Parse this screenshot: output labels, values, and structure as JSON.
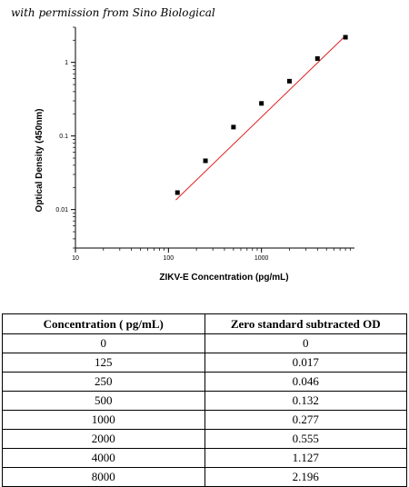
{
  "caption": "with permission from Sino Biological",
  "chart_data": {
    "type": "scatter",
    "x": [
      125,
      250,
      500,
      1000,
      2000,
      4000,
      8000
    ],
    "y": [
      0.017,
      0.046,
      0.132,
      0.277,
      0.555,
      1.127,
      2.196
    ],
    "xlabel": "ZIKV-E Concentration (pg/mL)",
    "ylabel": "Optical Density (450nm)",
    "xscale": "log",
    "yscale": "log",
    "xlim": [
      10,
      10000
    ],
    "ylim": [
      0.003,
      3
    ],
    "xticks": [
      "10",
      "100",
      "1000"
    ],
    "yticks": [
      "0.01",
      "0.1",
      "1"
    ],
    "fit_line": {
      "x": [
        120,
        8000
      ],
      "y": [
        0.0135,
        2.3
      ]
    },
    "colors": {
      "points": "#000000",
      "fit_line": "#e02020",
      "axes": "#000000"
    },
    "grid": false
  },
  "table": {
    "headers": [
      "Concentration ( pg/mL)",
      "Zero standard subtracted OD"
    ],
    "rows": [
      [
        "0",
        "0"
      ],
      [
        "125",
        "0.017"
      ],
      [
        "250",
        "0.046"
      ],
      [
        "500",
        "0.132"
      ],
      [
        "1000",
        "0.277"
      ],
      [
        "2000",
        "0.555"
      ],
      [
        "4000",
        "1.127"
      ],
      [
        "8000",
        "2.196"
      ]
    ]
  }
}
